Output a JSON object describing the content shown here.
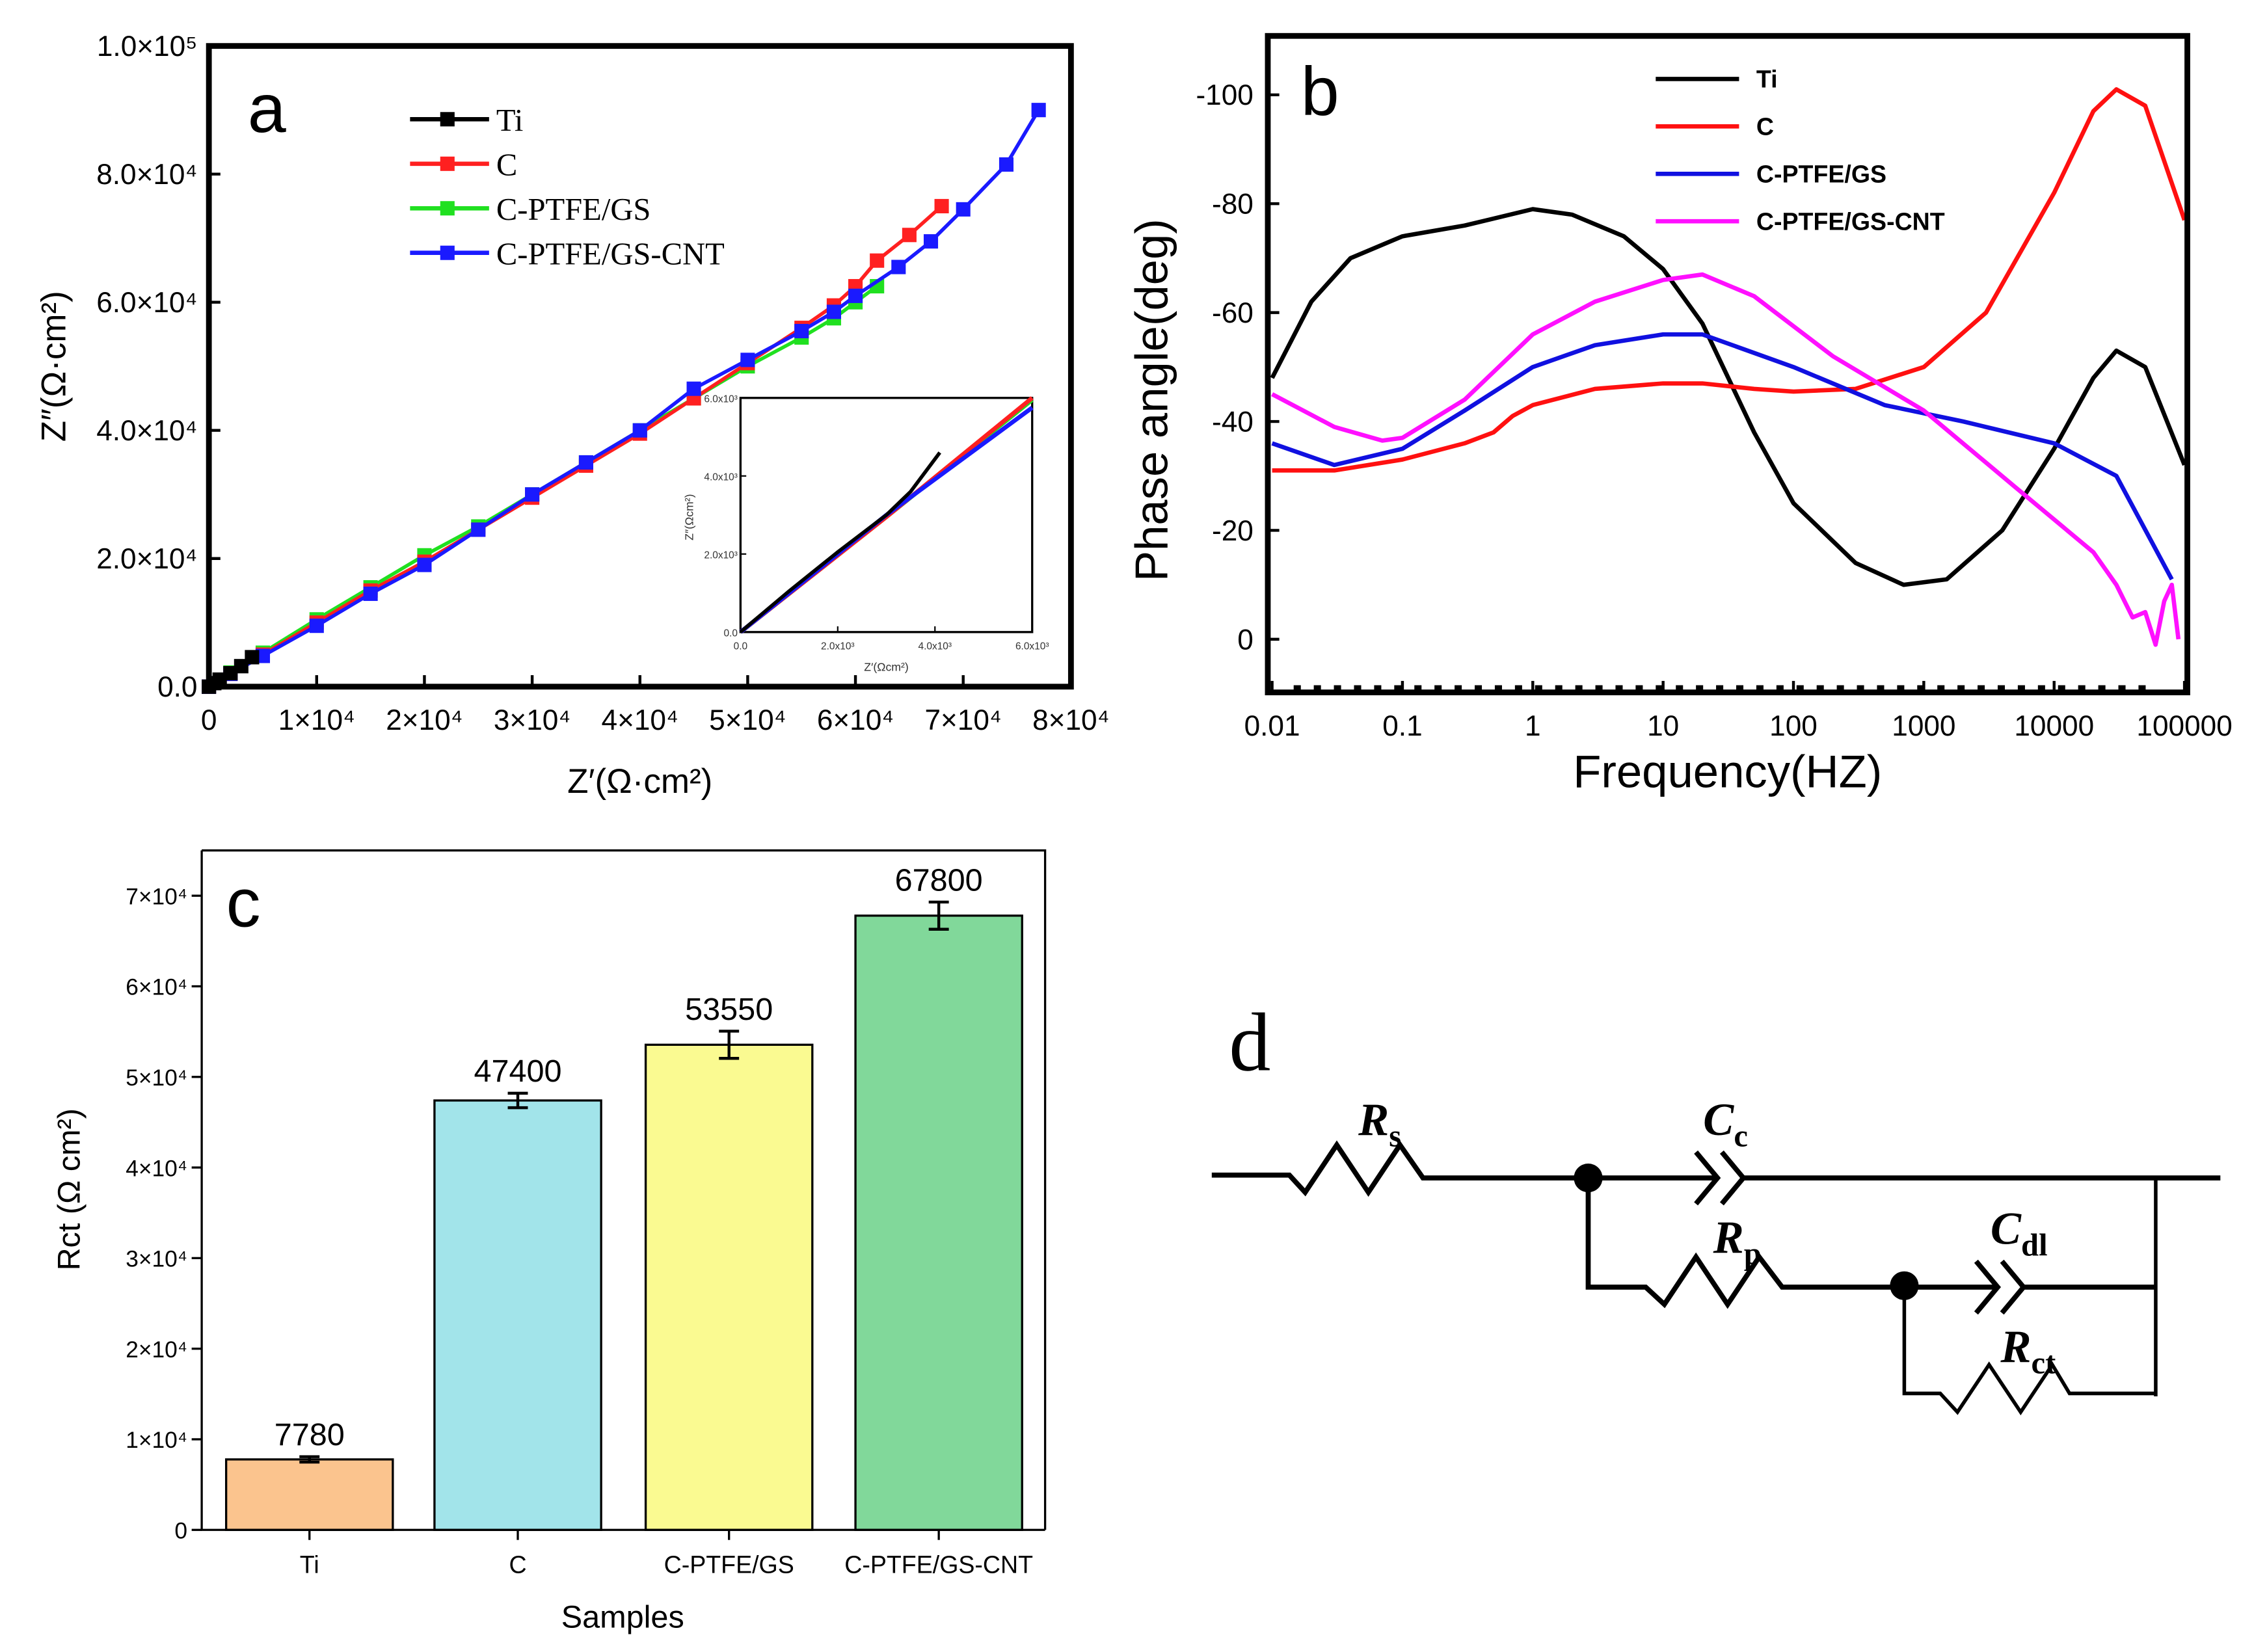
{
  "chart_data": [
    {
      "panel": "a",
      "type": "scatter",
      "panel_label": "a",
      "xlabel": "Z′(Ω·cm²)",
      "ylabel": "Z″(Ω·cm²)",
      "xlim": [
        0,
        80000
      ],
      "ylim": [
        0,
        100000
      ],
      "xticks": [
        0,
        10000,
        20000,
        30000,
        40000,
        50000,
        60000,
        70000,
        80000
      ],
      "xtick_labels": [
        "0",
        "1×10⁴",
        "2×10⁴",
        "3×10⁴",
        "4×10⁴",
        "5×10⁴",
        "6×10⁴",
        "7×10⁴",
        "8×10⁴"
      ],
      "yticks": [
        0,
        20000,
        40000,
        60000,
        80000,
        100000
      ],
      "ytick_labels": [
        "0.0",
        "2.0×10⁴",
        "4.0×10⁴",
        "6.0×10⁴",
        "8.0×10⁴",
        "1.0×10⁵"
      ],
      "legend_position": "top-left",
      "series": [
        {
          "name": "Ti",
          "color": "#000000",
          "points": [
            [
              0,
              0
            ],
            [
              500,
              550
            ],
            [
              1000,
              1100
            ],
            [
              2000,
              2100
            ],
            [
              3000,
              3200
            ],
            [
              4000,
              4600
            ]
          ]
        },
        {
          "name": "C",
          "color": "#ff2020",
          "points": [
            [
              0,
              0
            ],
            [
              2000,
              2000
            ],
            [
              5000,
              5000
            ],
            [
              10000,
              10000
            ],
            [
              15000,
              15000
            ],
            [
              20000,
              19500
            ],
            [
              25000,
              24500
            ],
            [
              30000,
              29500
            ],
            [
              35000,
              34500
            ],
            [
              40000,
              39500
            ],
            [
              45000,
              45000
            ],
            [
              50000,
              50500
            ],
            [
              55000,
              56000
            ],
            [
              58000,
              59500
            ],
            [
              60000,
              62500
            ],
            [
              62000,
              66500
            ],
            [
              65000,
              70500
            ],
            [
              68000,
              75000
            ]
          ]
        },
        {
          "name": "C-PTFE/GS",
          "color": "#20e020",
          "points": [
            [
              0,
              0
            ],
            [
              2000,
              2200
            ],
            [
              5000,
              5300
            ],
            [
              10000,
              10500
            ],
            [
              15000,
              15500
            ],
            [
              20000,
              20500
            ],
            [
              25000,
              25000
            ],
            [
              30000,
              30000
            ],
            [
              35000,
              35000
            ],
            [
              40000,
              40000
            ],
            [
              45000,
              45000
            ],
            [
              50000,
              50000
            ],
            [
              55000,
              54500
            ],
            [
              58000,
              57500
            ],
            [
              60000,
              60000
            ],
            [
              62000,
              62500
            ]
          ]
        },
        {
          "name": "C-PTFE/GS-CNT",
          "color": "#1a1aff",
          "points": [
            [
              0,
              0
            ],
            [
              2000,
              2000
            ],
            [
              5000,
              4800
            ],
            [
              10000,
              9500
            ],
            [
              15000,
              14500
            ],
            [
              20000,
              19000
            ],
            [
              25000,
              24500
            ],
            [
              30000,
              30000
            ],
            [
              35000,
              35000
            ],
            [
              40000,
              40000
            ],
            [
              45000,
              46500
            ],
            [
              50000,
              51000
            ],
            [
              55000,
              55500
            ],
            [
              58000,
              58500
            ],
            [
              60000,
              61000
            ],
            [
              64000,
              65500
            ],
            [
              67000,
              69500
            ],
            [
              70000,
              74500
            ],
            [
              74000,
              81500
            ],
            [
              77000,
              90000
            ]
          ]
        }
      ],
      "inset": {
        "xlabel": "Z′(Ωcm²)",
        "ylabel": "Z″(Ωcm²)",
        "xlim": [
          0,
          6000
        ],
        "ylim": [
          0,
          6000
        ],
        "xticks": [
          0,
          2000,
          4000,
          6000
        ],
        "xtick_labels": [
          "0.0",
          "2.0x10³",
          "4.0x10³",
          "6.0x10³"
        ],
        "yticks": [
          0,
          2000,
          4000,
          6000
        ],
        "ytick_labels": [
          "0.0",
          "2.0x10³",
          "4.0x10³",
          "6.0x10³"
        ],
        "series": [
          {
            "name": "Ti",
            "color": "#000000",
            "points": [
              [
                0,
                0
              ],
              [
                1000,
                1050
              ],
              [
                2000,
                2050
              ],
              [
                3000,
                3000
              ],
              [
                3500,
                3600
              ],
              [
                4100,
                4600
              ]
            ]
          },
          {
            "name": "C",
            "color": "#ff2020",
            "points": [
              [
                0,
                0
              ],
              [
                3000,
                2950
              ],
              [
                6000,
                6000
              ]
            ]
          },
          {
            "name": "C-PTFE/GS",
            "color": "#20e020",
            "points": [
              [
                0,
                0
              ],
              [
                3000,
                2950
              ],
              [
                6000,
                5950
              ]
            ]
          },
          {
            "name": "C-PTFE/GS-CNT",
            "color": "#1a1aff",
            "points": [
              [
                0,
                0
              ],
              [
                3000,
                3000
              ],
              [
                6000,
                5750
              ]
            ]
          }
        ]
      }
    },
    {
      "panel": "b",
      "type": "line",
      "panel_label": "b",
      "xlabel": "Frequency(HZ)",
      "ylabel": "Phase angle(deg)",
      "xscale": "log",
      "xlim": [
        0.01,
        100000
      ],
      "ylim": [
        9,
        -110
      ],
      "xticks": [
        0.01,
        0.1,
        1,
        10,
        100,
        1000,
        10000,
        100000
      ],
      "xtick_labels": [
        "0.01",
        "0.1",
        "1",
        "10",
        "100",
        "1000",
        "10000",
        "100000"
      ],
      "yticks": [
        0,
        -20,
        -40,
        -60,
        -80,
        -100
      ],
      "ytick_labels": [
        "0",
        "-20",
        "-40",
        "-60",
        "-80",
        "-100"
      ],
      "legend_position": "top-center",
      "series": [
        {
          "name": "Ti",
          "color": "#000000",
          "points": [
            [
              0.01,
              -48
            ],
            [
              0.02,
              -62
            ],
            [
              0.04,
              -70
            ],
            [
              0.1,
              -74
            ],
            [
              0.3,
              -76
            ],
            [
              1,
              -79
            ],
            [
              2,
              -78
            ],
            [
              5,
              -74
            ],
            [
              10,
              -68
            ],
            [
              20,
              -58
            ],
            [
              50,
              -38
            ],
            [
              100,
              -25
            ],
            [
              300,
              -14
            ],
            [
              700,
              -10
            ],
            [
              1500,
              -11
            ],
            [
              4000,
              -20
            ],
            [
              10000,
              -35
            ],
            [
              20000,
              -48
            ],
            [
              30000,
              -53
            ],
            [
              50000,
              -50
            ],
            [
              100000,
              -32
            ]
          ]
        },
        {
          "name": "C",
          "color": "#ff1010",
          "points": [
            [
              0.01,
              -31
            ],
            [
              0.03,
              -31
            ],
            [
              0.1,
              -33
            ],
            [
              0.3,
              -36
            ],
            [
              0.5,
              -38
            ],
            [
              0.7,
              -41
            ],
            [
              1,
              -43
            ],
            [
              3,
              -46
            ],
            [
              10,
              -47
            ],
            [
              20,
              -47
            ],
            [
              50,
              -46
            ],
            [
              100,
              -45.5
            ],
            [
              300,
              -46
            ],
            [
              1000,
              -50
            ],
            [
              3000,
              -60
            ],
            [
              10000,
              -82
            ],
            [
              20000,
              -97
            ],
            [
              30000,
              -101
            ],
            [
              50000,
              -98
            ],
            [
              100000,
              -77
            ]
          ]
        },
        {
          "name": "C-PTFE/GS",
          "color": "#1010e0",
          "points": [
            [
              0.01,
              -36
            ],
            [
              0.03,
              -32
            ],
            [
              0.1,
              -35
            ],
            [
              0.3,
              -42
            ],
            [
              1,
              -50
            ],
            [
              3,
              -54
            ],
            [
              10,
              -56
            ],
            [
              20,
              -56
            ],
            [
              100,
              -50
            ],
            [
              500,
              -43
            ],
            [
              2000,
              -40
            ],
            [
              10000,
              -36
            ],
            [
              30000,
              -30
            ],
            [
              80000,
              -11
            ]
          ]
        },
        {
          "name": "C-PTFE/GS-CNT",
          "color": "#ff10ff",
          "points": [
            [
              0.01,
              -45
            ],
            [
              0.03,
              -39
            ],
            [
              0.07,
              -36.5
            ],
            [
              0.1,
              -37
            ],
            [
              0.3,
              -44
            ],
            [
              1,
              -56
            ],
            [
              3,
              -62
            ],
            [
              10,
              -66
            ],
            [
              20,
              -67
            ],
            [
              50,
              -63
            ],
            [
              200,
              -52
            ],
            [
              1000,
              -42
            ],
            [
              5000,
              -28
            ],
            [
              20000,
              -16
            ],
            [
              30000,
              -10
            ],
            [
              40000,
              -4
            ],
            [
              50000,
              -5
            ],
            [
              60000,
              1
            ],
            [
              70000,
              -7
            ],
            [
              80000,
              -10
            ],
            [
              90000,
              0
            ]
          ]
        }
      ]
    },
    {
      "panel": "c",
      "type": "bar",
      "panel_label": "c",
      "xlabel": "Samples",
      "ylabel": "Rct (Ω cm²)",
      "ylim": [
        0,
        75000
      ],
      "yticks": [
        0,
        10000,
        20000,
        30000,
        40000,
        50000,
        60000,
        70000
      ],
      "ytick_labels": [
        "0",
        "1×10⁴",
        "2×10⁴",
        "3×10⁴",
        "4×10⁴",
        "5×10⁴",
        "6×10⁴",
        "7×10⁴"
      ],
      "categories": [
        "Ti",
        "C",
        "C-PTFE/GS",
        "C-PTFE/GS-CNT"
      ],
      "values": [
        7780,
        47400,
        53550,
        67800
      ],
      "value_labels": [
        "7780",
        "47400",
        "53550",
        "67800"
      ],
      "errors": [
        300,
        800,
        1500,
        1500
      ],
      "colors": [
        "#fbc48e",
        "#a2e4ea",
        "#fafa91",
        "#81d89a"
      ]
    }
  ],
  "circuit": {
    "panel_label": "d",
    "components": [
      {
        "symbol": "R",
        "sub": "s"
      },
      {
        "symbol": "C",
        "sub": "c"
      },
      {
        "symbol": "R",
        "sub": "p"
      },
      {
        "symbol": "C",
        "sub": "dl"
      },
      {
        "symbol": "R",
        "sub": "ct"
      }
    ]
  }
}
